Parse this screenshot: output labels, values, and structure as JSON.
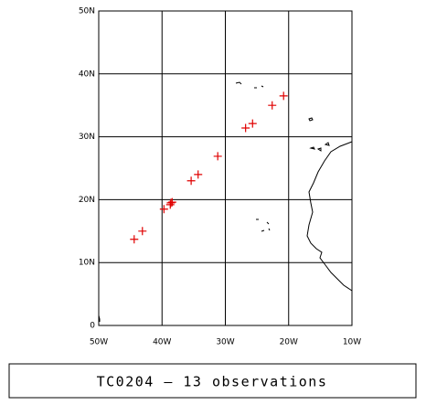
{
  "chart_data": {
    "type": "scatter",
    "caption": "TC0204 — 13 observations",
    "x": [
      -44.4,
      -43.1,
      -39.7,
      -38.7,
      -38.6,
      -38.4,
      -35.4,
      -34.3,
      -31.2,
      -26.8,
      -25.7,
      -22.6,
      -20.8
    ],
    "values": [
      13.7,
      15.0,
      18.5,
      19.2,
      19.5,
      19.6,
      23.0,
      24.0,
      26.9,
      31.4,
      32.1,
      35.0,
      36.5
    ],
    "color": "#e00000",
    "xlim": [
      -50,
      -10
    ],
    "ylim": [
      0,
      50
    ],
    "xticks": [
      {
        "value": -50,
        "label": "50W"
      },
      {
        "value": -40,
        "label": "40W"
      },
      {
        "value": -30,
        "label": "30W"
      },
      {
        "value": -20,
        "label": "20W"
      },
      {
        "value": -10,
        "label": "10W"
      }
    ],
    "yticks": [
      0,
      {
        "value": 10,
        "label": "10N"
      },
      {
        "value": 20,
        "label": "20N"
      },
      {
        "value": 30,
        "label": "30N"
      },
      {
        "value": 40,
        "label": "40N"
      },
      {
        "value": 50,
        "label": "50N"
      }
    ],
    "grid": true
  }
}
